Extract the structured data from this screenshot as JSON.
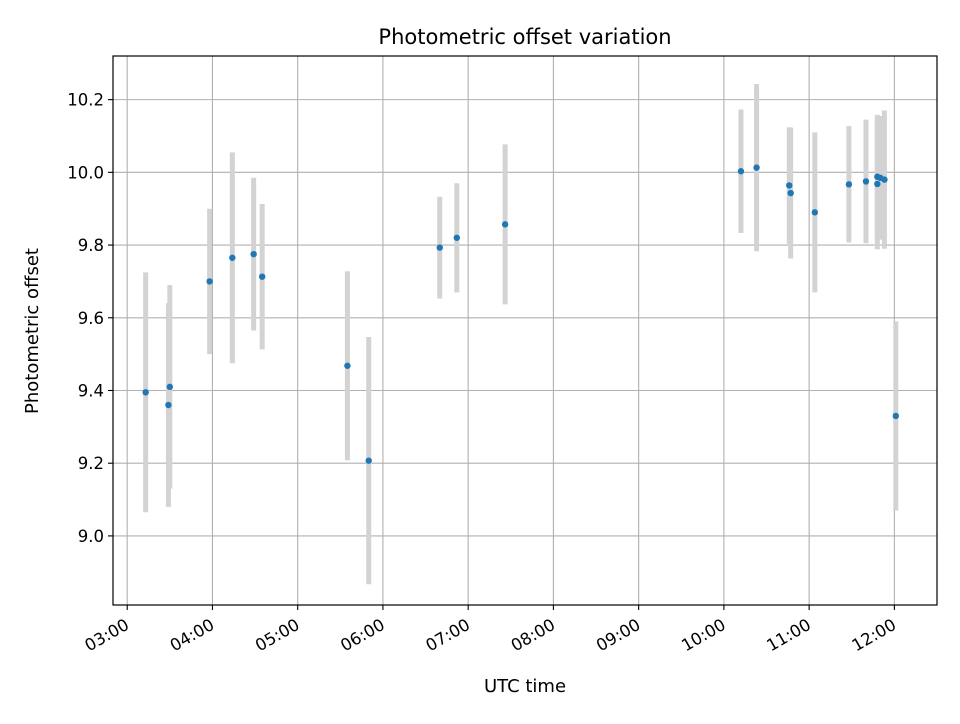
{
  "chart_data": {
    "type": "scatter",
    "title": "Photometric offset variation",
    "xlabel": "UTC time",
    "ylabel": "Photometric offset",
    "grid": true,
    "x_unit": "time HH:MM (UTC)",
    "xlim": [
      "02:50",
      "12:30"
    ],
    "ylim": [
      8.81,
      10.32
    ],
    "x_ticks": [
      "03:00",
      "04:00",
      "05:00",
      "06:00",
      "07:00",
      "08:00",
      "09:00",
      "10:00",
      "11:00",
      "12:00"
    ],
    "y_ticks": [
      9.0,
      9.2,
      9.4,
      9.6,
      9.8,
      10.0,
      10.2
    ],
    "y_tick_labels": [
      "9.0",
      "9.2",
      "9.4",
      "9.6",
      "9.8",
      "10.0",
      "10.2"
    ],
    "colors": {
      "marker": "#1f77b4",
      "errorbar": "#d3d3d3",
      "grid": "#b0b0b0"
    },
    "points": [
      {
        "x": "03:13",
        "y": 9.395,
        "err": 0.33
      },
      {
        "x": "03:29",
        "y": 9.36,
        "err": 0.28
      },
      {
        "x": "03:30",
        "y": 9.41,
        "err": 0.28
      },
      {
        "x": "03:58",
        "y": 9.7,
        "err": 0.2
      },
      {
        "x": "04:14",
        "y": 9.765,
        "err": 0.29
      },
      {
        "x": "04:29",
        "y": 9.775,
        "err": 0.21
      },
      {
        "x": "04:35",
        "y": 9.713,
        "err": 0.2
      },
      {
        "x": "05:35",
        "y": 9.468,
        "err": 0.26
      },
      {
        "x": "05:50",
        "y": 9.207,
        "err": 0.34
      },
      {
        "x": "06:40",
        "y": 9.793,
        "err": 0.14
      },
      {
        "x": "06:52",
        "y": 9.82,
        "err": 0.15
      },
      {
        "x": "07:26",
        "y": 9.857,
        "err": 0.22
      },
      {
        "x": "10:12",
        "y": 10.003,
        "err": 0.17
      },
      {
        "x": "10:23",
        "y": 10.013,
        "err": 0.23
      },
      {
        "x": "10:46",
        "y": 9.964,
        "err": 0.16
      },
      {
        "x": "10:47",
        "y": 9.943,
        "err": 0.18
      },
      {
        "x": "11:04",
        "y": 9.89,
        "err": 0.22
      },
      {
        "x": "11:28",
        "y": 9.967,
        "err": 0.16
      },
      {
        "x": "11:40",
        "y": 9.975,
        "err": 0.17
      },
      {
        "x": "11:48",
        "y": 9.988,
        "err": 0.17
      },
      {
        "x": "11:48",
        "y": 9.968,
        "err": 0.18
      },
      {
        "x": "11:50",
        "y": 9.985,
        "err": 0.17
      },
      {
        "x": "11:53",
        "y": 9.98,
        "err": 0.19
      },
      {
        "x": "12:01",
        "y": 9.33,
        "err": 0.26
      }
    ]
  }
}
